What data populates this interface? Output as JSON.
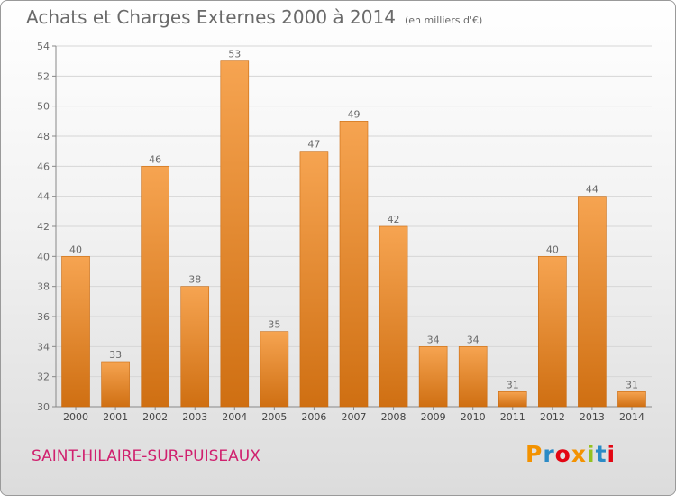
{
  "title": "Achats et Charges Externes 2000 à 2014",
  "subtitle": "(en milliers d'€)",
  "commune": "SAINT-HILAIRE-SUR-PUISEAUX",
  "logo": {
    "letters": [
      "P",
      "r",
      "o",
      "x",
      "i",
      "t",
      "i"
    ],
    "colors": [
      "#f39200",
      "#2b8bc6",
      "#e30613",
      "#f39200",
      "#95c11f",
      "#2b8bc6",
      "#e30613"
    ]
  },
  "colors": {
    "bar": "#f0963e",
    "bar_dark": "#cf6f12",
    "grid": "#d6d6d6",
    "text": "#6a6a6a"
  },
  "chart_data": {
    "type": "bar",
    "categories": [
      "2000",
      "2001",
      "2002",
      "2003",
      "2004",
      "2005",
      "2006",
      "2007",
      "2008",
      "2009",
      "2010",
      "2011",
      "2012",
      "2013",
      "2014"
    ],
    "values": [
      40,
      33,
      46,
      38,
      53,
      35,
      47,
      49,
      42,
      34,
      34,
      31,
      40,
      44,
      31
    ],
    "ylim": [
      30,
      54
    ],
    "yticks": [
      30,
      32,
      34,
      36,
      38,
      40,
      42,
      44,
      46,
      48,
      50,
      52,
      54
    ],
    "grid": true
  }
}
